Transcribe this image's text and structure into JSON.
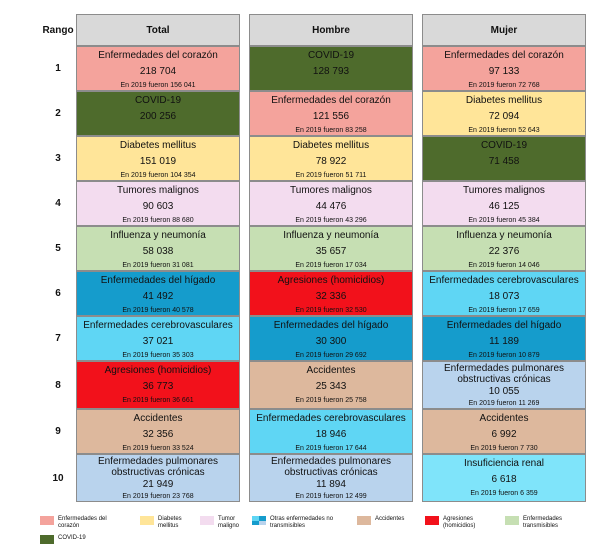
{
  "headers": {
    "rank": "Rango",
    "total": "Total",
    "hombre": "Hombre",
    "mujer": "Mujer"
  },
  "colors": {
    "corazon": "#f4a39c",
    "covid": "#4e6b2c",
    "diabetes": "#ffe599",
    "tumores": "#f3dcef",
    "influenza": "#c6dfb3",
    "higado": "#159ccc",
    "agresiones": "#f2111b",
    "cerebro": "#5fd6f4",
    "accidentes": "#ddb89d",
    "epoc": "#b9d3ed",
    "renal": "#7fe4fa",
    "header": "#d9d9d9"
  },
  "rows": [
    {
      "rank": "1",
      "total": {
        "cause": "Enfermedades del corazón",
        "value": "218 704",
        "prev": "En 2019 fueron 156 041",
        "color": "corazon"
      },
      "hombre": {
        "cause": "COVID-19",
        "value": "128 793",
        "prev": "",
        "color": "covid"
      },
      "mujer": {
        "cause": "Enfermedades del corazón",
        "value": "97 133",
        "prev": "En 2019 fueron 72 768",
        "color": "corazon"
      }
    },
    {
      "rank": "2",
      "total": {
        "cause": "COVID-19",
        "value": "200 256",
        "prev": "",
        "color": "covid"
      },
      "hombre": {
        "cause": "Enfermedades del corazón",
        "value": "121 556",
        "prev": "En 2019 fueron 83 258",
        "color": "corazon"
      },
      "mujer": {
        "cause": "Diabetes mellitus",
        "value": "72 094",
        "prev": "En 2019 fueron 52 643",
        "color": "diabetes"
      }
    },
    {
      "rank": "3",
      "total": {
        "cause": "Diabetes mellitus",
        "value": "151 019",
        "prev": "En 2019 fueron 104 354",
        "color": "diabetes"
      },
      "hombre": {
        "cause": "Diabetes mellitus",
        "value": "78 922",
        "prev": "En 2019 fueron 51 711",
        "color": "diabetes"
      },
      "mujer": {
        "cause": "COVID-19",
        "value": "71 458",
        "prev": "",
        "color": "covid"
      }
    },
    {
      "rank": "4",
      "total": {
        "cause": "Tumores malignos",
        "value": "90 603",
        "prev": "En 2019 fueron 88 680",
        "color": "tumores"
      },
      "hombre": {
        "cause": "Tumores malignos",
        "value": "44 476",
        "prev": "En 2019 fueron 43 296",
        "color": "tumores"
      },
      "mujer": {
        "cause": "Tumores malignos",
        "value": "46 125",
        "prev": "En 2019 fueron 45 384",
        "color": "tumores"
      }
    },
    {
      "rank": "5",
      "total": {
        "cause": "Influenza y neumonía",
        "value": "58 038",
        "prev": "En 2019 fueron 31 081",
        "color": "influenza"
      },
      "hombre": {
        "cause": "Influenza y neumonía",
        "value": "35 657",
        "prev": "En 2019 fueron 17 034",
        "color": "influenza"
      },
      "mujer": {
        "cause": "Influenza y neumonía",
        "value": "22 376",
        "prev": "En 2019 fueron 14 046",
        "color": "influenza"
      }
    },
    {
      "rank": "6",
      "total": {
        "cause": "Enfermedades del hígado",
        "value": "41 492",
        "prev": "En 2019 fueron 40 578",
        "color": "higado"
      },
      "hombre": {
        "cause": "Agresiones (homicidios)",
        "value": "32 336",
        "prev": "En 2019 fueron 32 530",
        "color": "agresiones"
      },
      "mujer": {
        "cause": "Enfermedades cerebrovasculares",
        "value": "18 073",
        "prev": "En 2019 fueron 17 659",
        "color": "cerebro"
      }
    },
    {
      "rank": "7",
      "total": {
        "cause": "Enfermedades cerebrovasculares",
        "value": "37 021",
        "prev": "En 2019 fueron 35 303",
        "color": "cerebro"
      },
      "hombre": {
        "cause": "Enfermedades del hígado",
        "value": "30 300",
        "prev": "En 2019 fueron 29 692",
        "color": "higado"
      },
      "mujer": {
        "cause": "Enfermedades del hígado",
        "value": "11 189",
        "prev": "En 2019 fueron 10 879",
        "color": "higado"
      }
    },
    {
      "rank": "8",
      "total": {
        "cause": "Agresiones (homicidios)",
        "value": "36 773",
        "prev": "En 2019 fueron 36 661",
        "color": "agresiones"
      },
      "hombre": {
        "cause": "Accidentes",
        "value": "25 343",
        "prev": "En 2019 fueron 25 758",
        "color": "accidentes"
      },
      "mujer": {
        "cause": "Enfermedades pulmonares obstructivas crónicas",
        "value": "10 055",
        "prev": "En 2019 fueron 11 269",
        "color": "epoc"
      }
    },
    {
      "rank": "9",
      "total": {
        "cause": "Accidentes",
        "value": "32 356",
        "prev": "En 2019 fueron 33 524",
        "color": "accidentes"
      },
      "hombre": {
        "cause": "Enfermedades cerebrovasculares",
        "value": "18 946",
        "prev": "En 2019 fueron 17 644",
        "color": "cerebro"
      },
      "mujer": {
        "cause": "Accidentes",
        "value": "6 992",
        "prev": "En 2019 fueron 7 730",
        "color": "accidentes"
      }
    },
    {
      "rank": "10",
      "total": {
        "cause": "Enfermedades pulmonares obstructivas crónicas",
        "value": "21 949",
        "prev": "En 2019 fueron 23 768",
        "color": "epoc"
      },
      "hombre": {
        "cause": "Enfermedades pulmonares obstructivas crónicas",
        "value": "11 894",
        "prev": "En 2019 fueron 12 499",
        "color": "epoc"
      },
      "mujer": {
        "cause": "Insuficiencia renal",
        "value": "6 618",
        "prev": "En 2019 fueron 6 359",
        "color": "renal"
      }
    }
  ],
  "legend": [
    {
      "label": "Enfermedades del corazón",
      "color": "corazon"
    },
    {
      "label": "Diabetes mellitus",
      "color": "diabetes"
    },
    {
      "label": "Tumor maligno",
      "color": "tumores"
    },
    {
      "label": "Otras enfermedades no transmisibles",
      "color": "cerebro"
    },
    {
      "label": "Accidentes",
      "color": "accidentes"
    },
    {
      "label": "Agresiones (homicidios)",
      "color": "agresiones"
    },
    {
      "label": "Enfermedades transmisibles",
      "color": "influenza"
    },
    {
      "label": "COVID-19",
      "color": "covid"
    }
  ]
}
